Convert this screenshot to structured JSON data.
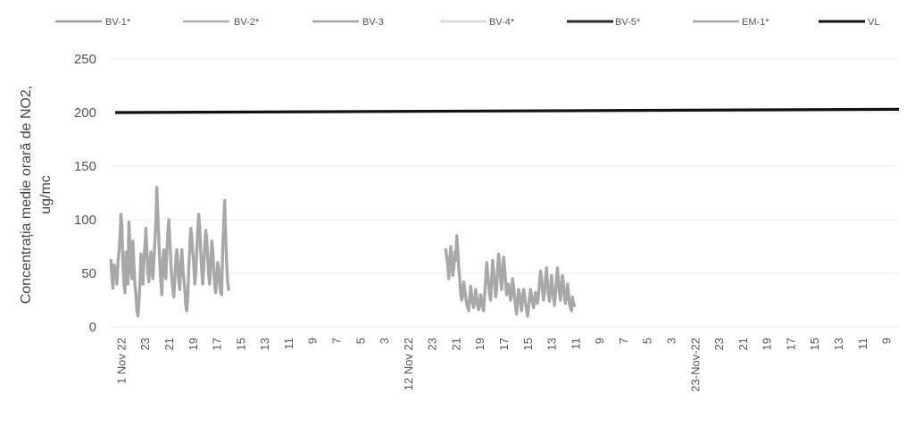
{
  "chart_data": {
    "type": "line",
    "title": "",
    "xlabel": "",
    "ylabel_lines": [
      "Concentrația medie orară de NO2,",
      "ug/mc"
    ],
    "ylim": [
      0,
      250
    ],
    "y_ticks": [
      0,
      50,
      100,
      150,
      200,
      250
    ],
    "grid": true,
    "legend_position": "top",
    "x_tick_labels": [
      "1 Nov 22",
      "23",
      "21",
      "19",
      "17",
      "15",
      "13",
      "11",
      "9",
      "7",
      "5",
      "3",
      "12 Nov 22",
      "23",
      "21",
      "19",
      "17",
      "15",
      "13",
      "11",
      "9",
      "7",
      "5",
      "3",
      "23-Nov-22",
      "23",
      "21",
      "19",
      "17",
      "15",
      "13",
      "11",
      "9"
    ],
    "series": [
      {
        "name": "BV-1*",
        "color": "#9a9a9a",
        "values": []
      },
      {
        "name": "BV-2*",
        "color": "#b0b0b0",
        "values": []
      },
      {
        "name": "BV-3",
        "color": "#a6a6a6",
        "values": []
      },
      {
        "name": "BV-4*",
        "color": "#d8d8d8",
        "values": []
      },
      {
        "name": "BV-5*",
        "color": "#2b2b2b",
        "values": []
      },
      {
        "name": "EM-1*",
        "color": "#a8a8a8",
        "segments": [
          {
            "start": 0.0,
            "values": [
              62,
              45,
              36,
              58,
              48,
              55,
              40,
              62,
              70,
              84,
              105,
              92,
              58,
              40,
              32,
              70,
              52,
              40,
              98,
              75,
              52,
              45,
              80,
              58,
              40,
              30,
              15,
              10,
              22,
              40,
              68,
              52,
              40,
              62,
              75,
              92,
              70,
              50,
              42,
              58,
              70,
              55,
              45,
              62,
              80,
              98,
              130,
              105,
              80,
              58,
              42,
              30,
              62,
              72,
              55,
              45,
              70,
              88,
              100,
              82,
              60,
              45,
              35,
              28,
              45,
              62,
              72,
              58,
              42,
              35,
              58,
              72,
              55,
              45,
              35,
              20,
              15,
              30,
              55,
              75,
              92,
              85,
              70,
              58,
              40,
              50,
              70,
              90,
              105,
              92,
              70,
              52,
              40,
              55,
              75,
              90,
              82,
              65,
              48,
              40,
              58,
              80,
              72,
              55,
              40,
              32,
              45,
              60,
              55,
              40,
              32,
              30,
              70,
              95,
              118,
              85,
              60,
              42,
              35
            ]
          },
          {
            "start": 14.0,
            "values": [
              72,
              65,
              58,
              45,
              62,
              75,
              58,
              48,
              55,
              70,
              62,
              85,
              72,
              55,
              45,
              32,
              25,
              30,
              42,
              35,
              28,
              22,
              18,
              15,
              28,
              38,
              30,
              22,
              18,
              25,
              35,
              28,
              20,
              16,
              22,
              30,
              25,
              18,
              15,
              30,
              45,
              60,
              50,
              40,
              30,
              25,
              45,
              62,
              52,
              40,
              28,
              35,
              55,
              68,
              58,
              45,
              35,
              50,
              65,
              55,
              42,
              30,
              36,
              40,
              32,
              25,
              30,
              45,
              38,
              28,
              18,
              12,
              25,
              35,
              30,
              22,
              15,
              28,
              35,
              30,
              22,
              16,
              10,
              18,
              28,
              35,
              30,
              22,
              18,
              25,
              32,
              28,
              22,
              30,
              42,
              52,
              45,
              35,
              25,
              32,
              45,
              55,
              42,
              30,
              24,
              35,
              48,
              38,
              28,
              20,
              30,
              45,
              55,
              42,
              32,
              25,
              38,
              48,
              40,
              28,
              22,
              30,
              40,
              32,
              22,
              18,
              15,
              28,
              22,
              20
            ]
          }
        ]
      },
      {
        "name": "VL",
        "color": "#111111",
        "values": [
          200,
          203
        ]
      }
    ]
  }
}
